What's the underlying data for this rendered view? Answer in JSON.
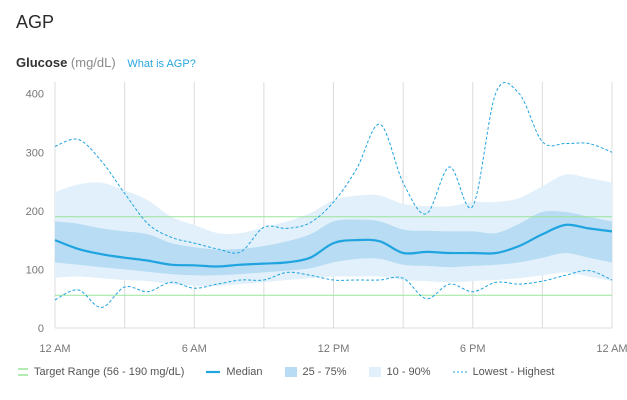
{
  "header": {
    "title": "AGP"
  },
  "subheader": {
    "label": "Glucose",
    "unit": "(mg/dL)",
    "link": "What is AGP?"
  },
  "colors": {
    "median": "#1fa4e0",
    "band_25_75": "#b7dcf3",
    "band_10_90": "#e1f0fa",
    "target": "#9be39b",
    "grid": "#dcdcdc",
    "text": "#777777"
  },
  "legend": {
    "target": "Target Range (56 - 190 mg/dL)",
    "median": "Median",
    "iqr": "25 - 75%",
    "p10_90": "10 - 90%",
    "range": "Lowest - Highest"
  },
  "chart_data": {
    "type": "area",
    "x": [
      0,
      1,
      2,
      3,
      4,
      5,
      6,
      7,
      8,
      9,
      10,
      11,
      12,
      13,
      14,
      15,
      16,
      17,
      18,
      19,
      20,
      21,
      22,
      23,
      24
    ],
    "ylim": [
      0,
      420
    ],
    "yticks": [
      0,
      100,
      200,
      300,
      400
    ],
    "xticks": [
      {
        "x": 0,
        "label": "12 AM"
      },
      {
        "x": 6,
        "label": "6 AM"
      },
      {
        "x": 12,
        "label": "12 PM"
      },
      {
        "x": 18,
        "label": "6 PM"
      },
      {
        "x": 24,
        "label": "12 AM"
      }
    ],
    "target_range": [
      56,
      190
    ],
    "series": [
      {
        "name": "Median",
        "values": [
          150,
          135,
          126,
          120,
          115,
          108,
          107,
          105,
          108,
          110,
          112,
          120,
          145,
          150,
          148,
          128,
          130,
          128,
          128,
          128,
          140,
          160,
          176,
          170,
          165
        ]
      },
      {
        "name": "25 - 75%",
        "lower": [
          112,
          108,
          104,
          100,
          96,
          92,
          90,
          90,
          92,
          95,
          98,
          102,
          112,
          118,
          118,
          108,
          106,
          104,
          106,
          108,
          112,
          120,
          128,
          120,
          112
        ],
        "upper": [
          182,
          178,
          170,
          165,
          160,
          145,
          138,
          134,
          135,
          140,
          148,
          160,
          182,
          185,
          182,
          168,
          166,
          165,
          165,
          162,
          178,
          198,
          198,
          190,
          182
        ]
      },
      {
        "name": "10 - 90%",
        "lower": [
          86,
          88,
          85,
          82,
          80,
          75,
          72,
          72,
          75,
          78,
          82,
          85,
          88,
          88,
          88,
          82,
          80,
          78,
          80,
          82,
          85,
          90,
          95,
          88,
          80
        ],
        "upper": [
          232,
          245,
          248,
          235,
          218,
          190,
          176,
          162,
          162,
          172,
          182,
          196,
          218,
          226,
          226,
          212,
          208,
          208,
          215,
          215,
          222,
          242,
          262,
          256,
          248
        ]
      },
      {
        "name": "Lowest",
        "values": [
          48,
          65,
          35,
          70,
          62,
          78,
          68,
          75,
          82,
          82,
          95,
          90,
          82,
          82,
          82,
          85,
          50,
          75,
          62,
          78,
          75,
          80,
          90,
          98,
          82
        ]
      },
      {
        "name": "Highest",
        "values": [
          310,
          322,
          285,
          230,
          178,
          155,
          145,
          135,
          130,
          172,
          170,
          180,
          215,
          272,
          348,
          248,
          195,
          275,
          208,
          402,
          400,
          318,
          315,
          315,
          300
        ]
      }
    ]
  }
}
